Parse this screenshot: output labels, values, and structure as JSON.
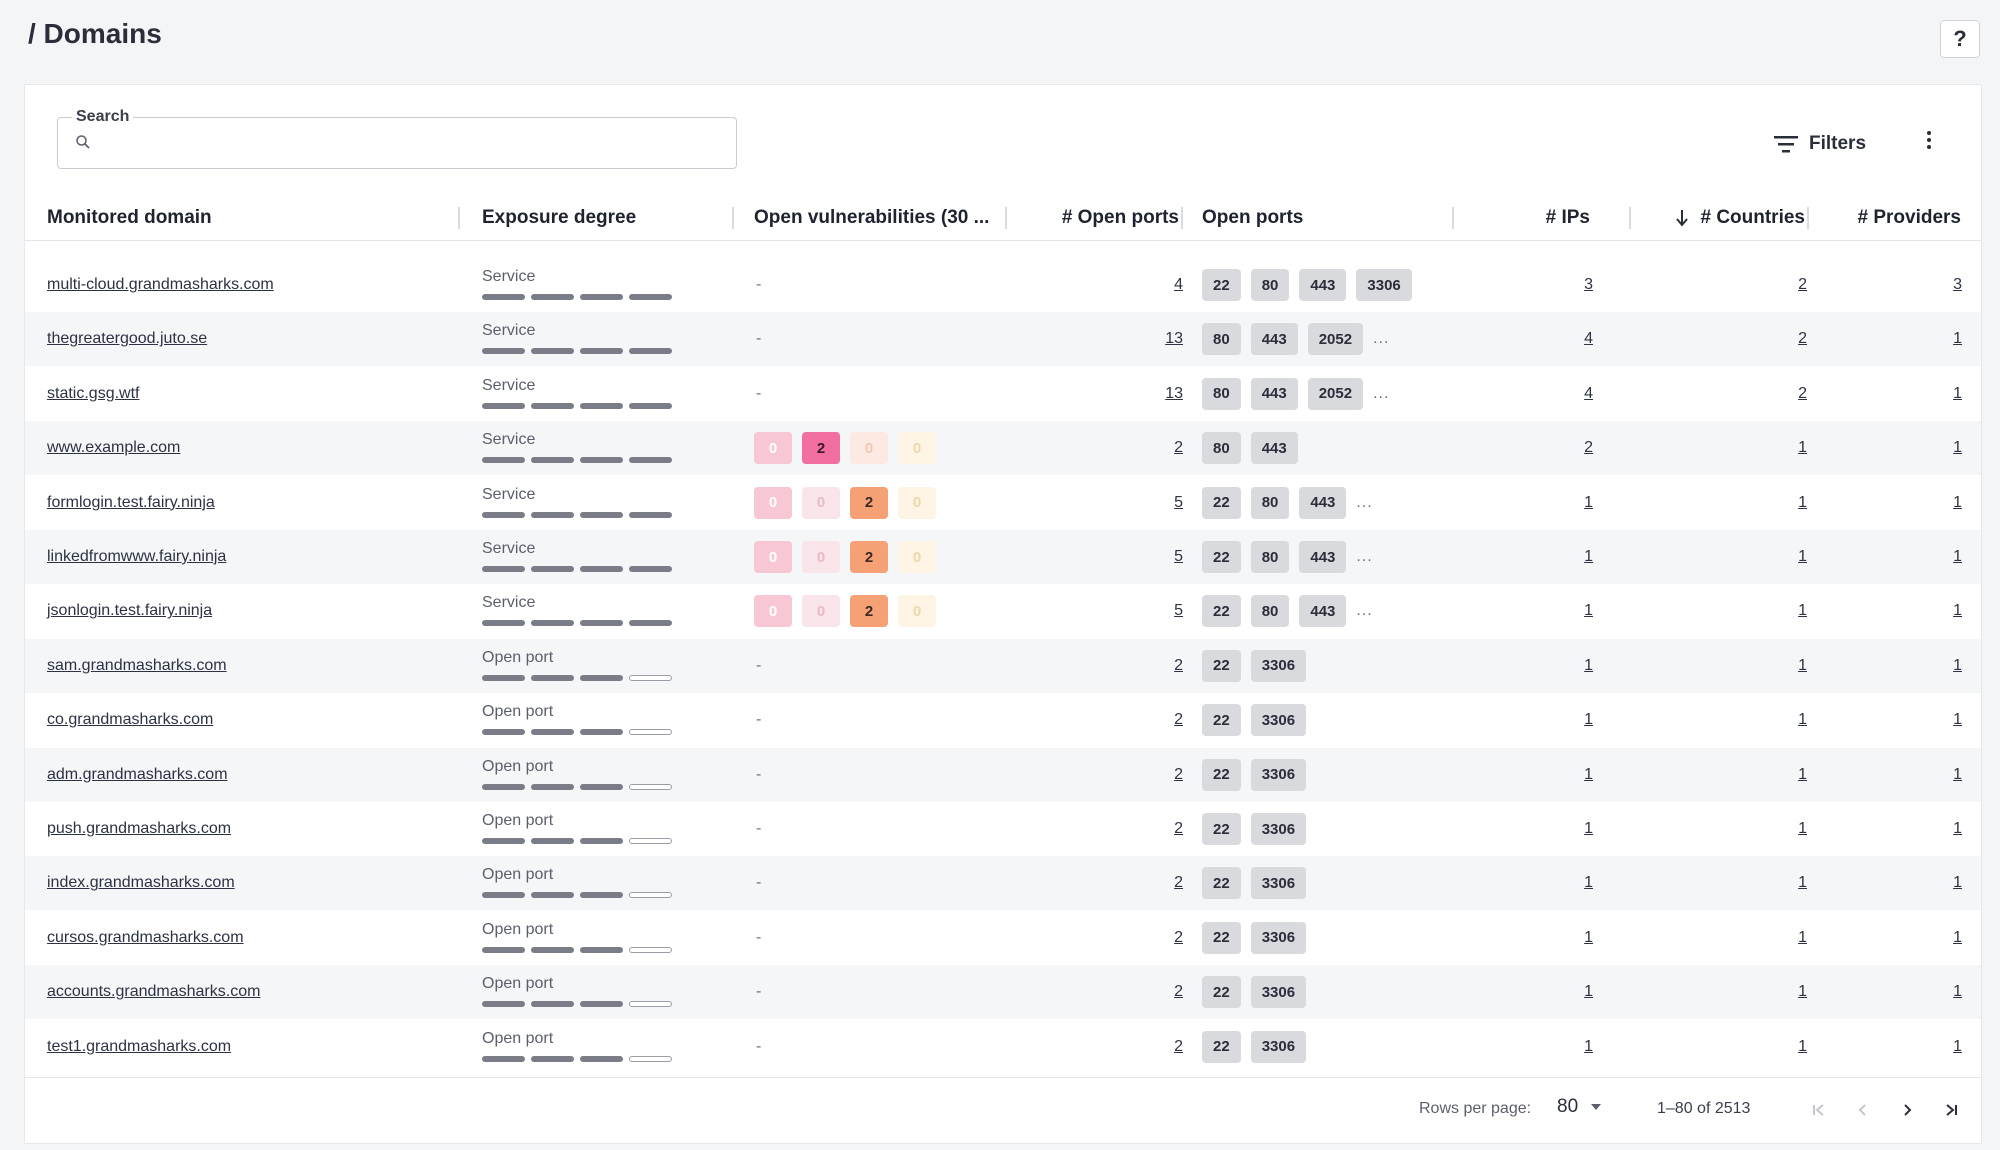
{
  "page": {
    "title": "/ Domains",
    "help_label": "?"
  },
  "search": {
    "label": "Search",
    "placeholder": "",
    "value": ""
  },
  "toolbar": {
    "filters_label": "Filters"
  },
  "columns": {
    "domain": "Monitored domain",
    "exposure": "Exposure degree",
    "vulns": "Open vulnerabilities (30 ...",
    "open_ports_count": "# Open ports",
    "open_ports": "Open ports",
    "ips": "# IPs",
    "countries": "# Countries",
    "providers": "# Providers"
  },
  "rows": [
    {
      "domain": "multi-cloud.grandmasharks.com",
      "exposure": "Service",
      "level": 4,
      "vulns": null,
      "open_ports": "4",
      "ports": [
        "22",
        "80",
        "443",
        "3306"
      ],
      "more": false,
      "ips": "3",
      "countries": "2",
      "providers": "3"
    },
    {
      "domain": "thegreatergood.juto.se",
      "exposure": "Service",
      "level": 4,
      "vulns": null,
      "open_ports": "13",
      "ports": [
        "80",
        "443",
        "2052"
      ],
      "more": true,
      "ips": "4",
      "countries": "2",
      "providers": "1"
    },
    {
      "domain": "static.gsg.wtf",
      "exposure": "Service",
      "level": 4,
      "vulns": null,
      "open_ports": "13",
      "ports": [
        "80",
        "443",
        "2052"
      ],
      "more": true,
      "ips": "4",
      "countries": "2",
      "providers": "1"
    },
    {
      "domain": "www.example.com",
      "exposure": "Service",
      "level": 4,
      "vulns": [
        {
          "v": "0",
          "c": "c0"
        },
        {
          "v": "2",
          "c": "cr"
        },
        {
          "v": "0",
          "c": "h0"
        },
        {
          "v": "0",
          "c": "m0"
        }
      ],
      "open_ports": "2",
      "ports": [
        "80",
        "443"
      ],
      "more": false,
      "ips": "2",
      "countries": "1",
      "providers": "1"
    },
    {
      "domain": "formlogin.test.fairy.ninja",
      "exposure": "Service",
      "level": 4,
      "vulns": [
        {
          "v": "0",
          "c": "c0"
        },
        {
          "v": "0",
          "c": "c1"
        },
        {
          "v": "2",
          "c": "h1"
        },
        {
          "v": "0",
          "c": "m0"
        }
      ],
      "open_ports": "5",
      "ports": [
        "22",
        "80",
        "443"
      ],
      "more": true,
      "ips": "1",
      "countries": "1",
      "providers": "1"
    },
    {
      "domain": "linkedfromwww.fairy.ninja",
      "exposure": "Service",
      "level": 4,
      "vulns": [
        {
          "v": "0",
          "c": "c0"
        },
        {
          "v": "0",
          "c": "c1"
        },
        {
          "v": "2",
          "c": "h1"
        },
        {
          "v": "0",
          "c": "m0"
        }
      ],
      "open_ports": "5",
      "ports": [
        "22",
        "80",
        "443"
      ],
      "more": true,
      "ips": "1",
      "countries": "1",
      "providers": "1"
    },
    {
      "domain": "jsonlogin.test.fairy.ninja",
      "exposure": "Service",
      "level": 4,
      "vulns": [
        {
          "v": "0",
          "c": "c0"
        },
        {
          "v": "0",
          "c": "c1"
        },
        {
          "v": "2",
          "c": "h1"
        },
        {
          "v": "0",
          "c": "m0"
        }
      ],
      "open_ports": "5",
      "ports": [
        "22",
        "80",
        "443"
      ],
      "more": true,
      "ips": "1",
      "countries": "1",
      "providers": "1"
    },
    {
      "domain": "sam.grandmasharks.com",
      "exposure": "Open port",
      "level": 3,
      "vulns": null,
      "open_ports": "2",
      "ports": [
        "22",
        "3306"
      ],
      "more": false,
      "ips": "1",
      "countries": "1",
      "providers": "1"
    },
    {
      "domain": "co.grandmasharks.com",
      "exposure": "Open port",
      "level": 3,
      "vulns": null,
      "open_ports": "2",
      "ports": [
        "22",
        "3306"
      ],
      "more": false,
      "ips": "1",
      "countries": "1",
      "providers": "1"
    },
    {
      "domain": "adm.grandmasharks.com",
      "exposure": "Open port",
      "level": 3,
      "vulns": null,
      "open_ports": "2",
      "ports": [
        "22",
        "3306"
      ],
      "more": false,
      "ips": "1",
      "countries": "1",
      "providers": "1"
    },
    {
      "domain": "push.grandmasharks.com",
      "exposure": "Open port",
      "level": 3,
      "vulns": null,
      "open_ports": "2",
      "ports": [
        "22",
        "3306"
      ],
      "more": false,
      "ips": "1",
      "countries": "1",
      "providers": "1"
    },
    {
      "domain": "index.grandmasharks.com",
      "exposure": "Open port",
      "level": 3,
      "vulns": null,
      "open_ports": "2",
      "ports": [
        "22",
        "3306"
      ],
      "more": false,
      "ips": "1",
      "countries": "1",
      "providers": "1"
    },
    {
      "domain": "cursos.grandmasharks.com",
      "exposure": "Open port",
      "level": 3,
      "vulns": null,
      "open_ports": "2",
      "ports": [
        "22",
        "3306"
      ],
      "more": false,
      "ips": "1",
      "countries": "1",
      "providers": "1"
    },
    {
      "domain": "accounts.grandmasharks.com",
      "exposure": "Open port",
      "level": 3,
      "vulns": null,
      "open_ports": "2",
      "ports": [
        "22",
        "3306"
      ],
      "more": false,
      "ips": "1",
      "countries": "1",
      "providers": "1"
    },
    {
      "domain": "test1.grandmasharks.com",
      "exposure": "Open port",
      "level": 3,
      "vulns": null,
      "open_ports": "2",
      "ports": [
        "22",
        "3306"
      ],
      "more": false,
      "ips": "1",
      "countries": "1",
      "providers": "1"
    }
  ],
  "empty_value": "-",
  "more_ports_label": "...",
  "pagination": {
    "rows_per_page_label": "Rows per page:",
    "rows_per_page": "80",
    "range": "1–80 of 2513"
  }
}
